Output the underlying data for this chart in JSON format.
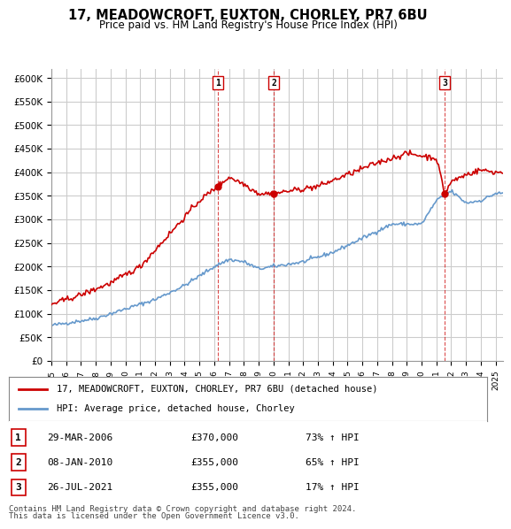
{
  "title": "17, MEADOWCROFT, EUXTON, CHORLEY, PR7 6BU",
  "subtitle": "Price paid vs. HM Land Registry's House Price Index (HPI)",
  "ylabel_ticks": [
    "£0",
    "£50K",
    "£100K",
    "£150K",
    "£200K",
    "£250K",
    "£300K",
    "£350K",
    "£400K",
    "£450K",
    "£500K",
    "£550K",
    "£600K"
  ],
  "ytick_vals": [
    0,
    50000,
    100000,
    150000,
    200000,
    250000,
    300000,
    350000,
    400000,
    450000,
    500000,
    550000,
    600000
  ],
  "ylim": [
    0,
    620000
  ],
  "xlim_start": 1995.0,
  "xlim_end": 2025.5,
  "sales": [
    {
      "num": 1,
      "year": 2006.24,
      "price": 370000,
      "date": "29-MAR-2006",
      "pct": "73%",
      "dir": "↑"
    },
    {
      "num": 2,
      "year": 2010.02,
      "price": 355000,
      "date": "08-JAN-2010",
      "pct": "65%",
      "dir": "↑"
    },
    {
      "num": 3,
      "year": 2021.57,
      "price": 355000,
      "date": "26-JUL-2021",
      "pct": "17%",
      "dir": "↑"
    }
  ],
  "legend_line1": "17, MEADOWCROFT, EUXTON, CHORLEY, PR7 6BU (detached house)",
  "legend_line2": "HPI: Average price, detached house, Chorley",
  "footer1": "Contains HM Land Registry data © Crown copyright and database right 2024.",
  "footer2": "This data is licensed under the Open Government Licence v3.0.",
  "red_color": "#cc0000",
  "blue_color": "#6699cc",
  "bg_color": "#ffffff",
  "grid_color": "#cccccc"
}
